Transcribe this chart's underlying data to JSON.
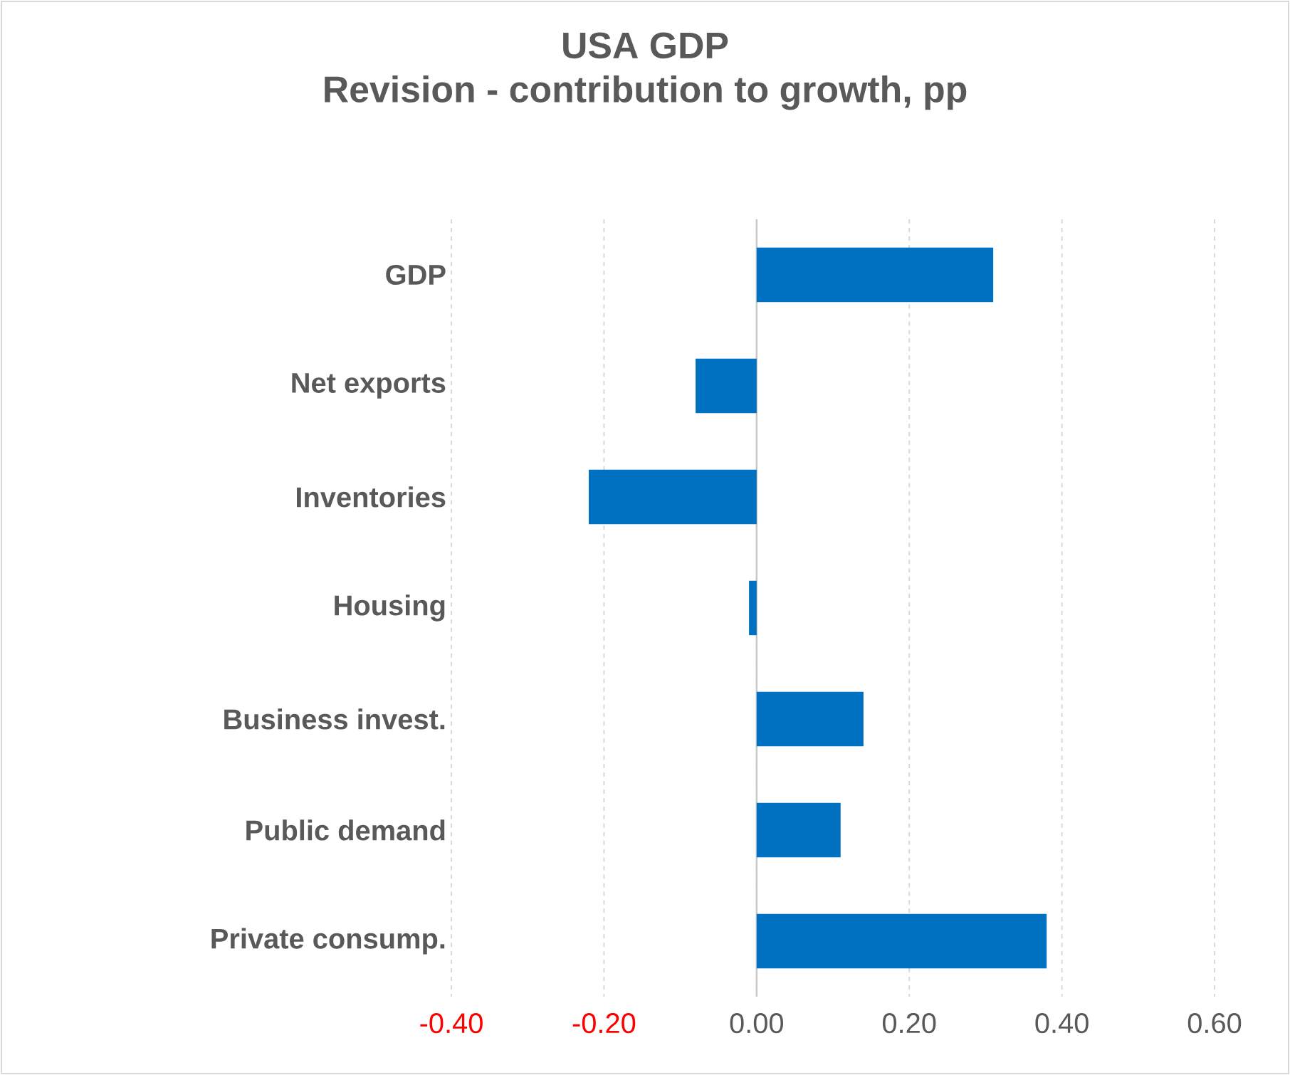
{
  "chart_data": {
    "type": "bar",
    "orientation": "horizontal",
    "title": "USA GDP",
    "subtitle": "Revision - contribution to growth, pp",
    "categories": [
      "GDP",
      "Net exports",
      "Inventories",
      "Housing",
      "Business invest.",
      "Public demand",
      "Private consump."
    ],
    "values": [
      0.31,
      -0.08,
      -0.22,
      -0.01,
      0.14,
      0.11,
      0.38
    ],
    "color": "#0070c0",
    "xlim": [
      -0.4,
      0.6
    ],
    "xticks": [
      {
        "value": -0.4,
        "label": "-0.40"
      },
      {
        "value": -0.2,
        "label": "-0.20"
      },
      {
        "value": 0,
        "label": "0.00"
      },
      {
        "value": 0.2,
        "label": "0.20"
      },
      {
        "value": 0.4,
        "label": "0.40"
      },
      {
        "value": 0.6,
        "label": "0.60"
      }
    ],
    "grid": "x"
  }
}
